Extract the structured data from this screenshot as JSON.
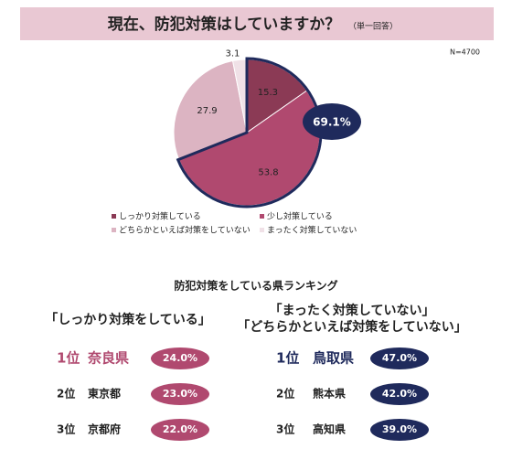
{
  "chart_data": {
    "type": "pie",
    "title": "現在、防犯対策はしていますか？",
    "subtitle": "（単一回答）",
    "note": "N=4700",
    "categories": [
      "しっかり対策している",
      "少し対策している",
      "どちらかといえば対策をしていない",
      "まったく対策していない"
    ],
    "values": [
      15.3,
      53.8,
      27.9,
      3.1
    ],
    "colors": [
      "#8b3a55",
      "#b0496f",
      "#dcb4c2",
      "#f0e1e7"
    ],
    "annotation": "69.1%",
    "annotation_color": "#1f2a5c"
  },
  "ranking": {
    "title": "防犯対策をしている県ランキング",
    "left": {
      "heading": [
        "「しっかり対策をしている」"
      ],
      "color": "#b0496f",
      "items": [
        {
          "rank": "1位",
          "pref": "奈良県",
          "value": "24.0%"
        },
        {
          "rank": "2位",
          "pref": "東京都",
          "value": "23.0%"
        },
        {
          "rank": "3位",
          "pref": "京都府",
          "value": "22.0%"
        }
      ]
    },
    "right": {
      "heading": [
        "「まったく対策していない」",
        "「どちらかといえば対策をしていない」"
      ],
      "color": "#1f2a5c",
      "items": [
        {
          "rank": "1位",
          "pref": "鳥取県",
          "value": "47.0%"
        },
        {
          "rank": "2位",
          "pref": "熊本県",
          "value": "42.0%"
        },
        {
          "rank": "3位",
          "pref": "高知県",
          "value": "39.0%"
        }
      ]
    }
  }
}
